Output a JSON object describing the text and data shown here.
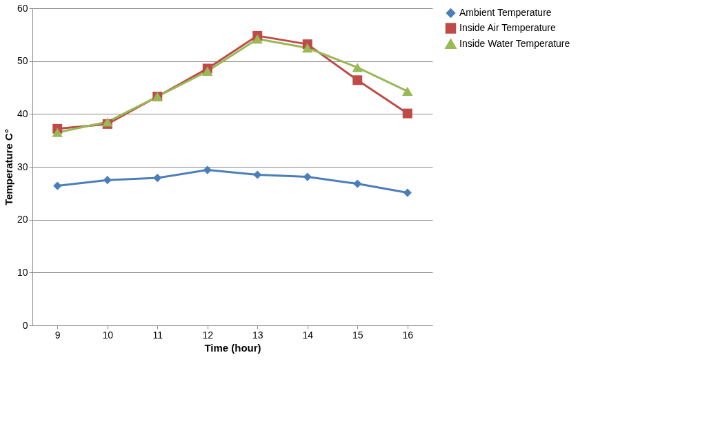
{
  "chart_data": {
    "type": "line",
    "xlabel": "Time (hour)",
    "ylabel": "Temperature C°",
    "categories": [
      "9",
      "10",
      "11",
      "12",
      "13",
      "14",
      "15",
      "16"
    ],
    "series": [
      {
        "name": "Ambient Temperature",
        "color": "#4a7ebb",
        "marker": "diamond",
        "values": [
          26.4,
          27.5,
          27.9,
          29.4,
          28.5,
          28.1,
          26.8,
          25.1
        ]
      },
      {
        "name": "Inside Air Temperature",
        "color": "#be4b48",
        "marker": "square",
        "values": [
          37.2,
          38.1,
          43.3,
          48.6,
          54.8,
          53.2,
          46.4,
          40.1
        ]
      },
      {
        "name": "Inside Water Temperature",
        "color": "#98b954",
        "marker": "triangle",
        "values": [
          36.5,
          38.5,
          43.3,
          48.1,
          54.2,
          52.5,
          48.8,
          44.3
        ]
      }
    ],
    "ylim": [
      0,
      60
    ],
    "yticks": [
      0,
      10,
      20,
      30,
      40,
      50,
      60
    ],
    "grid": "y",
    "legend": "right",
    "line_style": "solid"
  }
}
